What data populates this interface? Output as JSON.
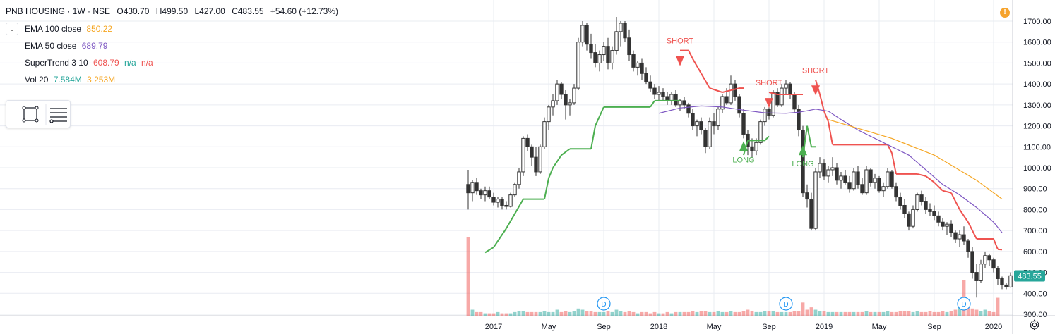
{
  "header": {
    "symbol": "PNB HOUSING · 1W · NSE",
    "open": "O430.70",
    "high": "H499.50",
    "low": "L427.00",
    "close": "C483.55",
    "change": "+54.60 (+12.73%)"
  },
  "indicators": {
    "ema100": {
      "label": "EMA 100 close",
      "value": "850.22",
      "color": "#f5a623"
    },
    "ema50": {
      "label": "EMA 50 close",
      "value": "689.79",
      "color": "#7e57c2"
    },
    "supertrend": {
      "label": "SuperTrend 3 10",
      "value": "608.79",
      "na1": "n/a",
      "na2": "n/a",
      "color": "#ef5350",
      "na1_color": "#26a69a",
      "na2_color": "#ef5350"
    },
    "volume": {
      "label": "Vol 20",
      "value1": "7.584M",
      "value2": "3.253M",
      "color1": "#26a69a",
      "color2": "#f5a623"
    }
  },
  "colors": {
    "up": "#26a69a",
    "down": "#ef5350",
    "candle": "#333333",
    "supertrend_long": "#4caf50",
    "supertrend_short": "#ef5350",
    "ema100": "#f5a623",
    "ema50": "#7e57c2",
    "price_label_bg": "#26a69a",
    "grid": "#e9ecf2"
  },
  "icons": {
    "collapse": "chevron-down-icon",
    "toolbox_rect": "rectangle-tool-icon",
    "toolbox_lines": "lines-settings-icon",
    "alert": "alert-icon",
    "settings": "gear-icon"
  },
  "alert_label": "!",
  "chart_data": {
    "type": "candlestick",
    "y_range": [
      300,
      1700
    ],
    "y_ticks": [
      "300.00",
      "400.00",
      "500.00",
      "600.00",
      "700.00",
      "800.00",
      "900.00",
      "1000.00",
      "1100.00",
      "1200.00",
      "1300.00",
      "1400.00",
      "1500.00",
      "1600.00",
      "1700.00"
    ],
    "x_ticks": [
      "2017",
      "May",
      "Sep",
      "2018",
      "May",
      "Sep",
      "2019",
      "May",
      "Sep",
      "2020"
    ],
    "last_price": "483.55",
    "ohlc": [
      [
        920,
        990,
        800,
        880
      ],
      [
        880,
        940,
        840,
        930
      ],
      [
        930,
        950,
        870,
        890
      ],
      [
        890,
        900,
        850,
        870
      ],
      [
        870,
        910,
        840,
        890
      ],
      [
        890,
        910,
        850,
        860
      ],
      [
        860,
        880,
        820,
        835
      ],
      [
        835,
        860,
        810,
        850
      ],
      [
        850,
        860,
        800,
        820
      ],
      [
        820,
        840,
        800,
        815
      ],
      [
        815,
        880,
        810,
        870
      ],
      [
        870,
        930,
        860,
        920
      ],
      [
        920,
        1000,
        900,
        980
      ],
      [
        980,
        1150,
        960,
        1140
      ],
      [
        1140,
        1160,
        1080,
        1100
      ],
      [
        1100,
        1110,
        1010,
        1050
      ],
      [
        1050,
        1100,
        960,
        980
      ],
      [
        980,
        1110,
        970,
        1100
      ],
      [
        1100,
        1240,
        1090,
        1220
      ],
      [
        1220,
        1300,
        1180,
        1290
      ],
      [
        1290,
        1350,
        1250,
        1320
      ],
      [
        1320,
        1420,
        1300,
        1400
      ],
      [
        1400,
        1410,
        1330,
        1350
      ],
      [
        1350,
        1370,
        1230,
        1300
      ],
      [
        1300,
        1330,
        1250,
        1310
      ],
      [
        1310,
        1400,
        1300,
        1380
      ],
      [
        1380,
        1620,
        1370,
        1600
      ],
      [
        1600,
        1700,
        1580,
        1680
      ],
      [
        1680,
        1690,
        1560,
        1590
      ],
      [
        1590,
        1640,
        1520,
        1550
      ],
      [
        1550,
        1590,
        1480,
        1500
      ],
      [
        1500,
        1560,
        1460,
        1540
      ],
      [
        1540,
        1600,
        1510,
        1580
      ],
      [
        1580,
        1620,
        1470,
        1500
      ],
      [
        1500,
        1580,
        1470,
        1560
      ],
      [
        1560,
        1720,
        1540,
        1650
      ],
      [
        1650,
        1700,
        1580,
        1690
      ],
      [
        1690,
        1700,
        1600,
        1620
      ],
      [
        1620,
        1660,
        1510,
        1540
      ],
      [
        1540,
        1560,
        1460,
        1480
      ],
      [
        1480,
        1510,
        1440,
        1500
      ],
      [
        1500,
        1520,
        1420,
        1450
      ],
      [
        1450,
        1480,
        1400,
        1410
      ],
      [
        1410,
        1440,
        1360,
        1380
      ],
      [
        1380,
        1400,
        1330,
        1350
      ],
      [
        1350,
        1390,
        1320,
        1360
      ],
      [
        1360,
        1380,
        1320,
        1340
      ],
      [
        1340,
        1360,
        1300,
        1320
      ],
      [
        1320,
        1360,
        1300,
        1350
      ],
      [
        1350,
        1370,
        1290,
        1300
      ],
      [
        1300,
        1330,
        1270,
        1320
      ],
      [
        1320,
        1340,
        1280,
        1300
      ],
      [
        1300,
        1310,
        1240,
        1260
      ],
      [
        1260,
        1280,
        1180,
        1200
      ],
      [
        1200,
        1230,
        1150,
        1220
      ],
      [
        1220,
        1240,
        1160,
        1180
      ],
      [
        1180,
        1190,
        1070,
        1100
      ],
      [
        1100,
        1240,
        1090,
        1220
      ],
      [
        1220,
        1260,
        1160,
        1200
      ],
      [
        1200,
        1290,
        1180,
        1280
      ],
      [
        1280,
        1350,
        1260,
        1340
      ],
      [
        1340,
        1380,
        1300,
        1310
      ],
      [
        1310,
        1440,
        1300,
        1400
      ],
      [
        1400,
        1420,
        1320,
        1340
      ],
      [
        1340,
        1350,
        1240,
        1260
      ],
      [
        1260,
        1280,
        1140,
        1160
      ],
      [
        1160,
        1180,
        1060,
        1100
      ],
      [
        1100,
        1140,
        1050,
        1080
      ],
      [
        1080,
        1140,
        1060,
        1120
      ],
      [
        1120,
        1230,
        1110,
        1220
      ],
      [
        1220,
        1290,
        1200,
        1280
      ],
      [
        1280,
        1330,
        1230,
        1250
      ],
      [
        1250,
        1370,
        1240,
        1360
      ],
      [
        1360,
        1380,
        1290,
        1300
      ],
      [
        1300,
        1400,
        1290,
        1380
      ],
      [
        1380,
        1420,
        1350,
        1400
      ],
      [
        1400,
        1410,
        1330,
        1350
      ],
      [
        1350,
        1360,
        1260,
        1280
      ],
      [
        1280,
        1300,
        1150,
        1180
      ],
      [
        1180,
        1200,
        860,
        880
      ],
      [
        880,
        920,
        810,
        850
      ],
      [
        850,
        880,
        700,
        710
      ],
      [
        710,
        1000,
        700,
        980
      ],
      [
        980,
        1050,
        950,
        1020
      ],
      [
        1020,
        1040,
        940,
        960
      ],
      [
        960,
        1010,
        930,
        990
      ],
      [
        990,
        1050,
        960,
        1000
      ],
      [
        1000,
        1020,
        920,
        940
      ],
      [
        940,
        980,
        900,
        960
      ],
      [
        960,
        990,
        920,
        930
      ],
      [
        930,
        960,
        880,
        900
      ],
      [
        900,
        1000,
        890,
        980
      ],
      [
        980,
        1010,
        900,
        920
      ],
      [
        920,
        950,
        870,
        880
      ],
      [
        880,
        1010,
        870,
        990
      ],
      [
        990,
        1000,
        910,
        930
      ],
      [
        930,
        970,
        900,
        950
      ],
      [
        950,
        960,
        880,
        890
      ],
      [
        890,
        930,
        860,
        910
      ],
      [
        910,
        1000,
        900,
        980
      ],
      [
        980,
        990,
        900,
        910
      ],
      [
        910,
        930,
        840,
        860
      ],
      [
        860,
        880,
        800,
        820
      ],
      [
        820,
        850,
        760,
        780
      ],
      [
        780,
        790,
        700,
        720
      ],
      [
        720,
        820,
        710,
        800
      ],
      [
        800,
        880,
        790,
        870
      ],
      [
        870,
        890,
        820,
        840
      ],
      [
        840,
        860,
        780,
        800
      ],
      [
        800,
        830,
        770,
        790
      ],
      [
        790,
        820,
        750,
        770
      ],
      [
        770,
        790,
        720,
        740
      ],
      [
        740,
        760,
        700,
        720
      ],
      [
        720,
        740,
        680,
        730
      ],
      [
        730,
        750,
        670,
        690
      ],
      [
        690,
        700,
        640,
        660
      ],
      [
        660,
        700,
        620,
        680
      ],
      [
        680,
        720,
        630,
        650
      ],
      [
        650,
        660,
        570,
        600
      ],
      [
        600,
        620,
        470,
        500
      ],
      [
        500,
        540,
        380,
        460
      ],
      [
        460,
        560,
        450,
        540
      ],
      [
        540,
        600,
        520,
        580
      ],
      [
        580,
        590,
        530,
        560
      ],
      [
        560,
        570,
        500,
        520
      ],
      [
        520,
        530,
        440,
        470
      ],
      [
        470,
        480,
        420,
        440
      ],
      [
        440,
        450,
        420,
        430
      ],
      [
        430,
        500,
        427,
        484
      ]
    ],
    "volume": [
      66,
      5,
      3,
      3,
      2,
      2,
      2,
      3,
      2,
      2,
      2,
      3,
      4,
      4,
      3,
      3,
      3,
      3,
      4,
      3,
      3,
      5,
      3,
      4,
      3,
      4,
      6,
      5,
      4,
      4,
      3,
      3,
      3,
      4,
      3,
      5,
      4,
      3,
      4,
      3,
      2,
      3,
      3,
      2,
      3,
      2,
      2,
      3,
      2,
      3,
      3,
      3,
      3,
      4,
      3,
      4,
      4,
      3,
      3,
      4,
      3,
      3,
      4,
      3,
      3,
      4,
      5,
      4,
      3,
      3,
      4,
      4,
      4,
      3,
      3,
      3,
      3,
      4,
      4,
      11,
      5,
      7,
      5,
      4,
      4,
      3,
      3,
      3,
      3,
      3,
      3,
      3,
      3,
      3,
      4,
      3,
      3,
      3,
      3,
      4,
      3,
      3,
      4,
      4,
      4,
      3,
      4,
      3,
      3,
      4,
      3,
      3,
      4,
      3,
      4,
      5,
      10,
      30,
      9,
      6,
      5,
      4,
      5,
      4,
      3,
      15
    ],
    "supertrend": [
      [
        4,
        595,
        "long"
      ],
      [
        6,
        620,
        "long"
      ],
      [
        9,
        710,
        "long"
      ],
      [
        11,
        780,
        "long"
      ],
      [
        13,
        850,
        "long"
      ],
      [
        18,
        850,
        "long"
      ],
      [
        19,
        950,
        "long"
      ],
      [
        20,
        1000,
        "long"
      ],
      [
        22,
        1060,
        "long"
      ],
      [
        24,
        1090,
        "long"
      ],
      [
        29,
        1090,
        "long"
      ],
      [
        30,
        1200,
        "long"
      ],
      [
        32,
        1290,
        "long"
      ],
      [
        43,
        1290,
        "long"
      ],
      [
        44,
        1320,
        "long"
      ],
      [
        50,
        1320,
        "long"
      ],
      [
        50,
        1560,
        "short"
      ],
      [
        52,
        1560,
        "short"
      ],
      [
        53,
        1520,
        "short"
      ],
      [
        55,
        1450,
        "short"
      ],
      [
        57,
        1380,
        "short"
      ],
      [
        60,
        1360,
        "short"
      ],
      [
        62,
        1370,
        "short"
      ],
      [
        64,
        1380,
        "short"
      ],
      [
        65,
        1380,
        "short"
      ],
      [
        65,
        1060,
        "long"
      ],
      [
        66,
        1130,
        "long"
      ],
      [
        68,
        1130,
        "long"
      ],
      [
        70,
        1130,
        "long"
      ],
      [
        71,
        1150,
        "long"
      ],
      [
        71,
        1360,
        "short"
      ],
      [
        73,
        1350,
        "short"
      ],
      [
        78,
        1350,
        "short"
      ],
      [
        79,
        1350,
        "short"
      ],
      [
        79,
        1050,
        "long"
      ],
      [
        80,
        1200,
        "long"
      ],
      [
        81,
        1100,
        "long"
      ],
      [
        82,
        1100,
        "long"
      ],
      [
        82,
        1420,
        "short"
      ],
      [
        83,
        1350,
        "short"
      ],
      [
        84,
        1270,
        "short"
      ],
      [
        85,
        1220,
        "short"
      ],
      [
        86,
        1110,
        "short"
      ],
      [
        99,
        1110,
        "short"
      ],
      [
        100,
        1070,
        "short"
      ],
      [
        101,
        970,
        "short"
      ],
      [
        106,
        970,
        "short"
      ],
      [
        108,
        960,
        "short"
      ],
      [
        110,
        930,
        "short"
      ],
      [
        112,
        890,
        "short"
      ],
      [
        114,
        880,
        "short"
      ],
      [
        116,
        800,
        "short"
      ],
      [
        117,
        770,
        "short"
      ],
      [
        118,
        740,
        "short"
      ],
      [
        119,
        700,
        "short"
      ],
      [
        120,
        660,
        "short"
      ],
      [
        124,
        660,
        "short"
      ],
      [
        125,
        610,
        "short"
      ],
      [
        126,
        608.79,
        "short"
      ]
    ],
    "ema50": [
      [
        45,
        1260
      ],
      [
        50,
        1285
      ],
      [
        55,
        1295
      ],
      [
        60,
        1290
      ],
      [
        65,
        1275
      ],
      [
        70,
        1262
      ],
      [
        75,
        1260
      ],
      [
        78,
        1265
      ],
      [
        80,
        1272
      ],
      [
        82,
        1280
      ],
      [
        85,
        1270
      ],
      [
        88,
        1230
      ],
      [
        92,
        1180
      ],
      [
        96,
        1140
      ],
      [
        100,
        1100
      ],
      [
        104,
        1060
      ],
      [
        108,
        990
      ],
      [
        112,
        920
      ],
      [
        116,
        870
      ],
      [
        120,
        810
      ],
      [
        124,
        740
      ],
      [
        126,
        689.79
      ]
    ],
    "ema100": [
      [
        85,
        1230
      ],
      [
        90,
        1200
      ],
      [
        95,
        1170
      ],
      [
        100,
        1140
      ],
      [
        105,
        1100
      ],
      [
        110,
        1060
      ],
      [
        115,
        1000
      ],
      [
        120,
        940
      ],
      [
        124,
        880
      ],
      [
        126,
        850.22
      ]
    ],
    "annotations": [
      {
        "text": "SHORT",
        "bar": 50,
        "price": 1580,
        "dir": "short"
      },
      {
        "text": "LONG",
        "bar": 65,
        "price": 1100,
        "dir": "long"
      },
      {
        "text": "SHORT",
        "bar": 71,
        "price": 1380,
        "dir": "short"
      },
      {
        "text": "LONG",
        "bar": 79,
        "price": 1080,
        "dir": "long"
      },
      {
        "text": "SHORT",
        "bar": 82,
        "price": 1440,
        "dir": "short"
      }
    ],
    "dividend_markers": [
      {
        "bar": 32,
        "text": "D"
      },
      {
        "bar": 75,
        "text": "D"
      },
      {
        "bar": 117,
        "text": "D"
      }
    ]
  }
}
